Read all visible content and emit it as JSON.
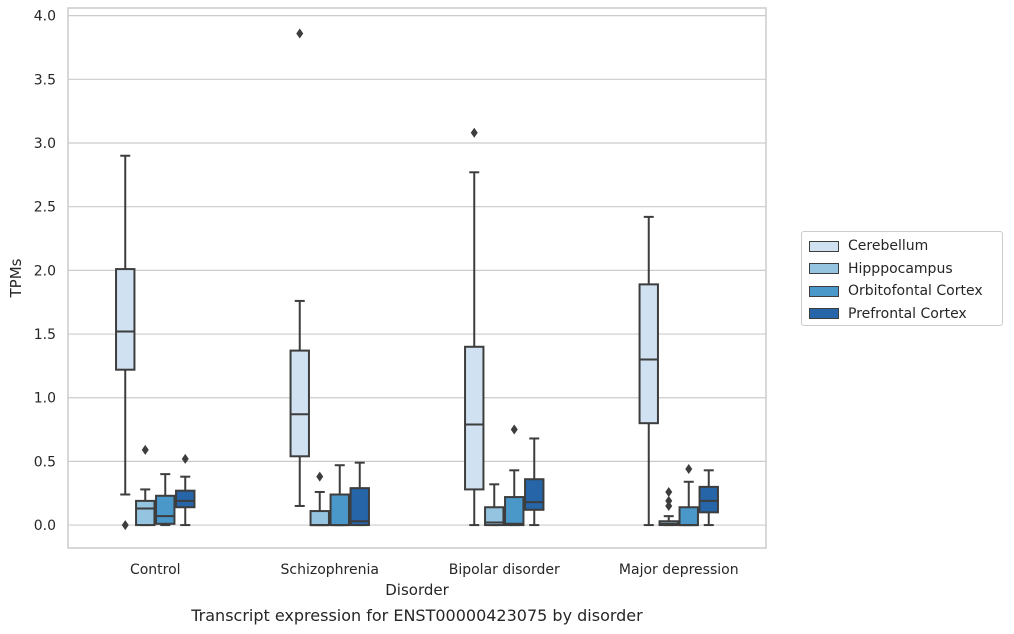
{
  "chart_data": {
    "type": "box",
    "title": "",
    "caption": "Transcript expression for ENST00000423075 by disorder",
    "xlabel": "Disorder",
    "ylabel": "TPMs",
    "ylim": [
      -0.18,
      4.06
    ],
    "yticks": [
      "0.0",
      "0.5",
      "1.0",
      "1.5",
      "2.0",
      "2.5",
      "3.0",
      "3.5",
      "4.0"
    ],
    "categories": [
      "Control",
      "Schizophrenia",
      "Bipolar disorder",
      "Major depression"
    ],
    "grid": true,
    "legend_position": "right",
    "series": [
      {
        "name": "Cerebellum",
        "color": "#d0e1f2",
        "boxes": [
          {
            "q1": 1.22,
            "median": 1.52,
            "q3": 2.01,
            "whislo": 0.24,
            "whishi": 2.9,
            "fliers": [
              0.0
            ]
          },
          {
            "q1": 0.54,
            "median": 0.87,
            "q3": 1.37,
            "whislo": 0.15,
            "whishi": 1.76,
            "fliers": [
              3.86
            ]
          },
          {
            "q1": 0.28,
            "median": 0.79,
            "q3": 1.4,
            "whislo": 0.0,
            "whishi": 2.77,
            "fliers": [
              3.08
            ]
          },
          {
            "q1": 0.8,
            "median": 1.3,
            "q3": 1.89,
            "whislo": 0.0,
            "whishi": 2.42,
            "fliers": []
          }
        ]
      },
      {
        "name": "Hipppocampus",
        "color": "#94c4df",
        "boxes": [
          {
            "q1": 0.0,
            "median": 0.13,
            "q3": 0.19,
            "whislo": 0.0,
            "whishi": 0.28,
            "fliers": [
              0.59
            ]
          },
          {
            "q1": 0.0,
            "median": 0.0,
            "q3": 0.11,
            "whislo": 0.0,
            "whishi": 0.26,
            "fliers": [
              0.38
            ]
          },
          {
            "q1": 0.0,
            "median": 0.02,
            "q3": 0.14,
            "whislo": 0.0,
            "whishi": 0.32,
            "fliers": []
          },
          {
            "q1": 0.0,
            "median": 0.01,
            "q3": 0.03,
            "whislo": 0.0,
            "whishi": 0.07,
            "fliers": [
              0.15,
              0.19,
              0.26
            ]
          }
        ]
      },
      {
        "name": "Orbitofontal Cortex",
        "color": "#4a98c9",
        "boxes": [
          {
            "q1": 0.01,
            "median": 0.07,
            "q3": 0.23,
            "whislo": 0.0,
            "whishi": 0.4,
            "fliers": []
          },
          {
            "q1": 0.0,
            "median": 0.0,
            "q3": 0.24,
            "whislo": 0.0,
            "whishi": 0.47,
            "fliers": []
          },
          {
            "q1": 0.0,
            "median": 0.01,
            "q3": 0.22,
            "whislo": 0.0,
            "whishi": 0.43,
            "fliers": [
              0.75
            ]
          },
          {
            "q1": 0.0,
            "median": 0.0,
            "q3": 0.14,
            "whislo": 0.0,
            "whishi": 0.34,
            "fliers": [
              0.44
            ]
          }
        ]
      },
      {
        "name": "Prefrontal Cortex",
        "color": "#2565a8",
        "boxes": [
          {
            "q1": 0.14,
            "median": 0.19,
            "q3": 0.27,
            "whislo": 0.0,
            "whishi": 0.38,
            "fliers": [
              0.52
            ]
          },
          {
            "q1": 0.0,
            "median": 0.03,
            "q3": 0.29,
            "whislo": 0.0,
            "whishi": 0.49,
            "fliers": []
          },
          {
            "q1": 0.12,
            "median": 0.18,
            "q3": 0.36,
            "whislo": 0.0,
            "whishi": 0.68,
            "fliers": []
          },
          {
            "q1": 0.1,
            "median": 0.19,
            "q3": 0.3,
            "whislo": 0.0,
            "whishi": 0.43,
            "fliers": []
          }
        ]
      }
    ]
  }
}
